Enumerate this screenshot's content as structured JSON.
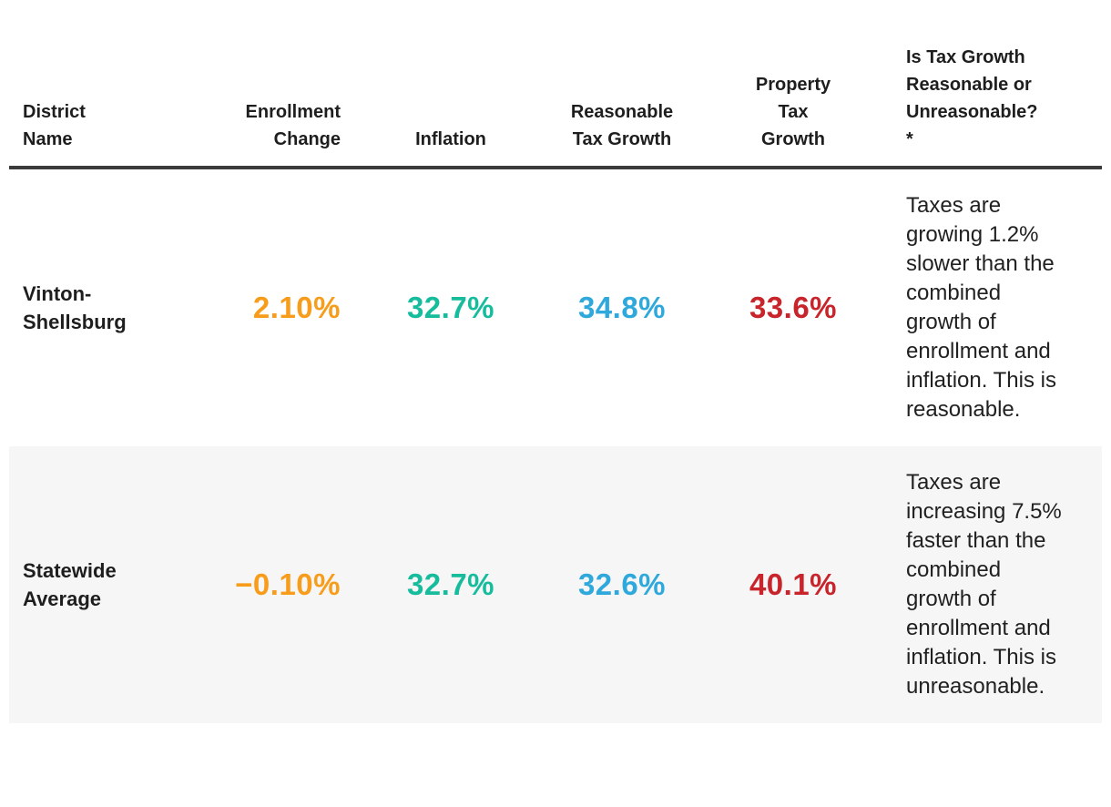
{
  "palette": {
    "orange": "#F89C1B",
    "teal": "#17BC9D",
    "blue": "#2FA8DC",
    "red": "#C8242B",
    "header_text": "#1E1E1E",
    "body_text": "#212121",
    "row_alt_bg": "#F6F6F6",
    "header_border": "#3B3B3B"
  },
  "table": {
    "columns": [
      {
        "id": "district",
        "label": "District\nName"
      },
      {
        "id": "enrollment_change",
        "label": "Enrollment\nChange"
      },
      {
        "id": "inflation",
        "label": "Inflation"
      },
      {
        "id": "reasonable_tax_growth",
        "label": "Reasonable\nTax Growth"
      },
      {
        "id": "property_tax_growth",
        "label": "Property\nTax\nGrowth"
      },
      {
        "id": "assessment",
        "label": "Is Tax Growth\nReasonable or\nUnreasonable?\n*"
      }
    ],
    "rows": [
      {
        "district": "Vinton-Shellsburg",
        "enrollment_change": "2.10%",
        "inflation": "32.7%",
        "reasonable_tax_growth": "34.8%",
        "property_tax_growth": "33.6%",
        "assessment": "Taxes are growing 1.2% slower than the combined growth of enrollment and inflation. This is reasonable."
      },
      {
        "district": "Statewide Average",
        "enrollment_change": "−0.10%",
        "inflation": "32.7%",
        "reasonable_tax_growth": "32.6%",
        "property_tax_growth": "40.1%",
        "assessment": "Taxes are increasing 7.5% faster than the combined growth of enrollment and inflation. This is unreasonable."
      }
    ]
  },
  "chart_data": {
    "type": "table",
    "title": "",
    "columns": [
      "District Name",
      "Enrollment Change",
      "Inflation",
      "Reasonable Tax Growth",
      "Property Tax Growth",
      "Is Tax Growth Reasonable or Unreasonable? *"
    ],
    "rows": [
      [
        "Vinton-Shellsburg",
        "2.10%",
        "32.7%",
        "34.8%",
        "33.6%",
        "Taxes are growing 1.2% slower than the combined growth of enrollment and inflation. This is reasonable."
      ],
      [
        "Statewide Average",
        "−0.10%",
        "32.7%",
        "32.6%",
        "40.1%",
        "Taxes are increasing 7.5% faster than the combined growth of enrollment and inflation. This is unreasonable."
      ]
    ],
    "numeric_series": [
      {
        "name": "Enrollment Change (%)",
        "values": [
          2.1,
          -0.1
        ]
      },
      {
        "name": "Inflation (%)",
        "values": [
          32.7,
          32.7
        ]
      },
      {
        "name": "Reasonable Tax Growth (%)",
        "values": [
          34.8,
          32.6
        ]
      },
      {
        "name": "Property Tax Growth (%)",
        "values": [
          33.6,
          40.1
        ]
      }
    ],
    "categories": [
      "Vinton-Shellsburg",
      "Statewide Average"
    ]
  }
}
